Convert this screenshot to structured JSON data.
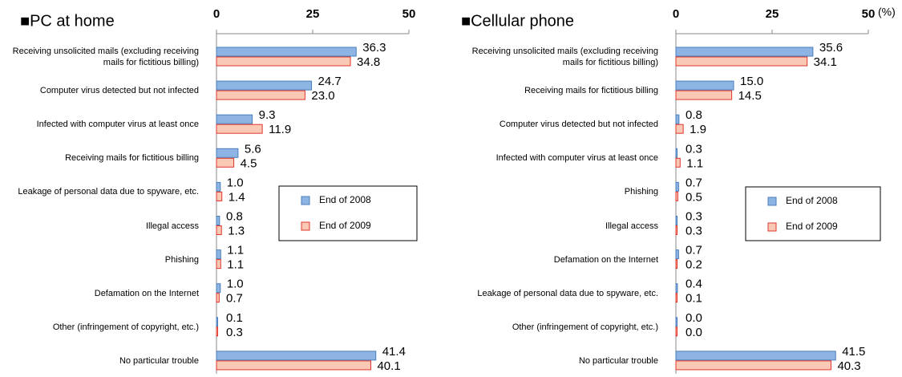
{
  "chart_data": [
    {
      "type": "barh",
      "title": "■PC at home",
      "categories": [
        "Receiving unsolicited mails  (excluding receiving mails for fictitious billing)",
        "Computer virus detected but not infected",
        "Infected with computer virus at least once",
        "Receiving mails for fictitious billing",
        "Leakage of personal data due to spyware, etc.",
        "Illegal access",
        "Phishing",
        "Defamation on the Internet",
        "Other (infringement of copyright, etc.)",
        "No particular trouble"
      ],
      "series": [
        {
          "name": "End of 2008",
          "color": "#8eb4e3",
          "edgecolor": "#4a7ebb",
          "values": [
            36.3,
            24.7,
            9.3,
            5.6,
            1.0,
            0.8,
            1.1,
            1.0,
            0.1,
            41.4
          ],
          "value_labels": [
            "36.3",
            "24.7",
            "9.3",
            "5.6",
            "1.0",
            "0.8",
            "1.1",
            "1.0",
            "0.1",
            "41.4"
          ]
        },
        {
          "name": "End of 2009",
          "color": "#f9c9b6",
          "edgecolor": "#e0352b",
          "values": [
            34.8,
            23.0,
            11.9,
            4.5,
            1.4,
            1.3,
            1.1,
            0.7,
            0.3,
            40.1
          ],
          "value_labels": [
            "34.8",
            "23.0",
            "11.9",
            "4.5",
            "1.4",
            "1.3",
            "1.1",
            "0.7",
            "0.3",
            "40.1"
          ]
        }
      ],
      "xlim": [
        0,
        50
      ],
      "xticks": [
        0,
        25,
        50
      ]
    },
    {
      "type": "barh",
      "title": "■Cellular phone",
      "unit_label": "(%)",
      "categories": [
        "Receiving unsolicited mails  (excluding receiving mails for fictitious billing)",
        "Receiving mails for fictitious billing",
        "Computer virus detected but not infected",
        "Infected with computer virus at least once",
        "Phishing",
        "Illegal access",
        "Defamation on the Internet",
        "Leakage of personal data due to spyware, etc.",
        "Other (infringement of copyright, etc.)",
        "No particular trouble"
      ],
      "series": [
        {
          "name": "End of 2008",
          "color": "#8eb4e3",
          "edgecolor": "#4a7ebb",
          "values": [
            35.6,
            15.0,
            0.8,
            0.3,
            0.7,
            0.3,
            0.7,
            0.4,
            0.0,
            41.5
          ],
          "value_labels": [
            "35.6",
            "15.0",
            "0.8",
            "0.3",
            "0.7",
            "0.3",
            "0.7",
            "0.4",
            "0.0",
            "41.5"
          ]
        },
        {
          "name": "End of 2009",
          "color": "#f9c9b6",
          "edgecolor": "#e0352b",
          "values": [
            34.1,
            14.5,
            1.9,
            1.1,
            0.5,
            0.3,
            0.2,
            0.1,
            0.0,
            40.3
          ],
          "value_labels": [
            "34.1",
            "14.5",
            "1.9",
            "1.1",
            "0.5",
            "0.3",
            "0.2",
            "0.1",
            "0.0",
            "40.3"
          ]
        }
      ],
      "xlim": [
        0,
        50
      ],
      "xticks": [
        0,
        25,
        50
      ]
    }
  ]
}
